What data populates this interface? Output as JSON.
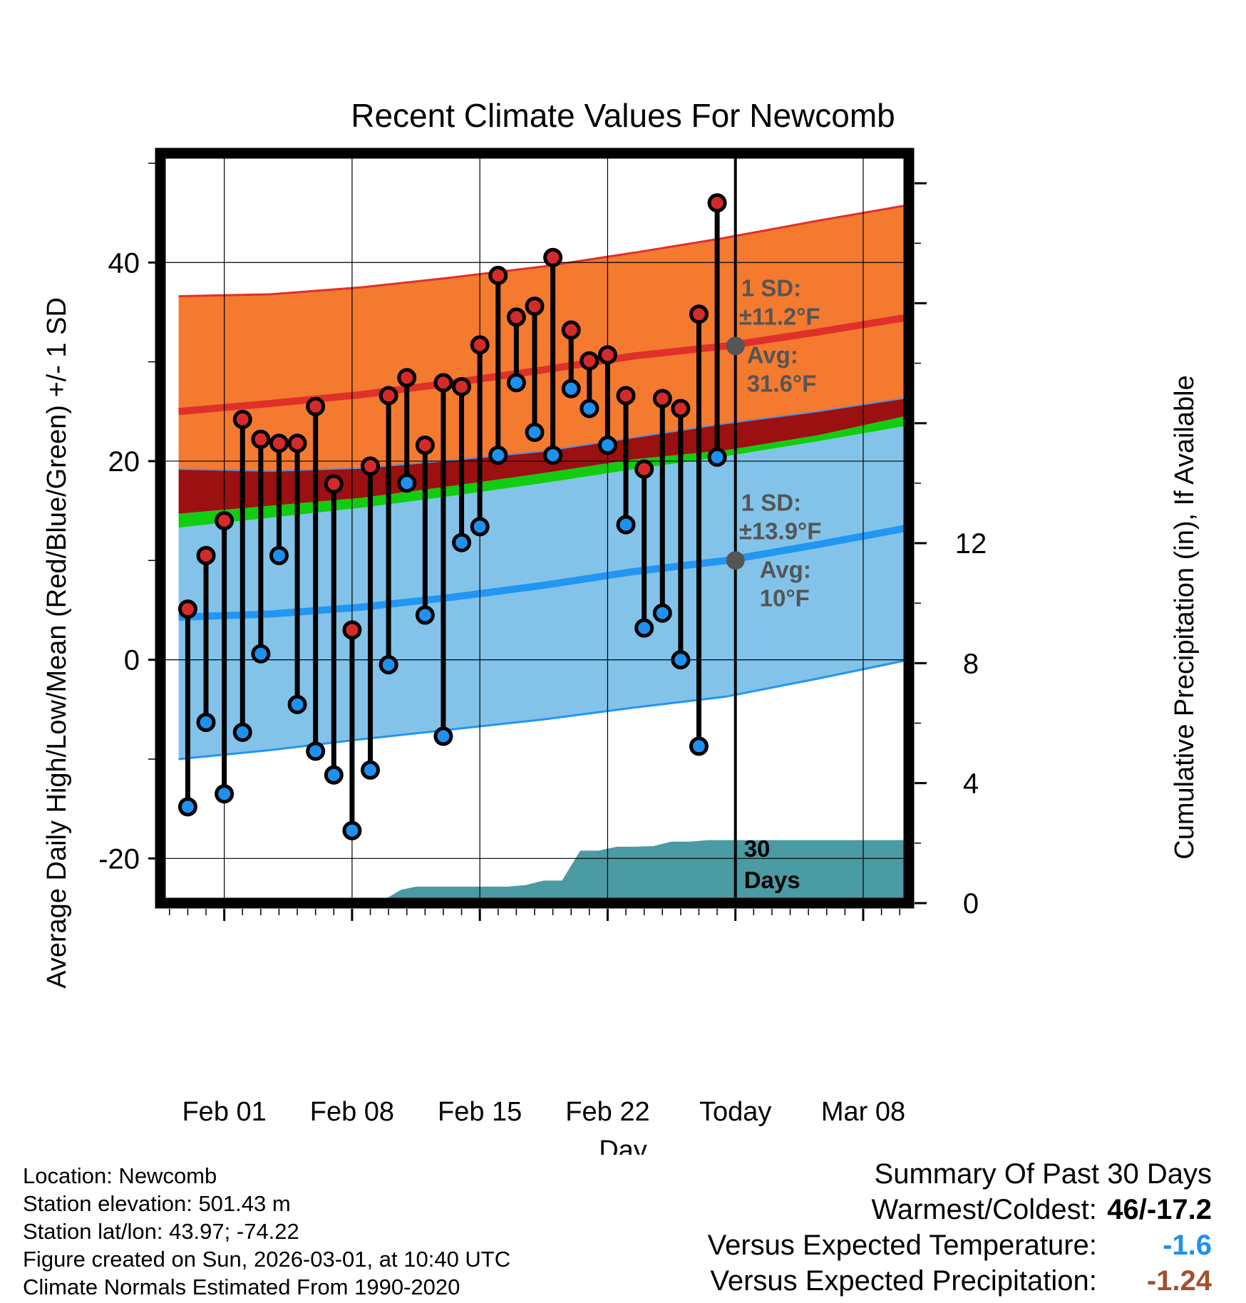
{
  "title": "Recent Climate Values For Newcomb",
  "colors": {
    "high_band": "#f47a2f",
    "high_band_edge": "#e0302a",
    "low_band": "#83c3e9",
    "low_band_edge": "#2196f3",
    "mean_band": "#9b1010",
    "mean_green": "#11cc11",
    "precip": "#4a9ba3",
    "high_marker": "#d42a2a",
    "low_marker": "#1e90ef",
    "annotation": "#555555",
    "temp_anomaly": "#1e90ef",
    "precip_anomaly": "#a0522d"
  },
  "chart_data": {
    "type": "line",
    "x_unit": "day offset (0 = Feb 01)",
    "xlim": [
      -3.5,
      37.5
    ],
    "ylim": [
      -24.5,
      51
    ],
    "y2lim": [
      0,
      25
    ],
    "xlabel": "Day",
    "ylabel": "Average Daily High/Low/Mean (Red/Blue/Green) +/- 1 SD",
    "y2label": "Cumulative Precipitation (in), If Available",
    "x_ticks": [
      {
        "x": 0,
        "label": "Feb 01"
      },
      {
        "x": 7,
        "label": "Feb 08"
      },
      {
        "x": 14,
        "label": "Feb 15"
      },
      {
        "x": 21,
        "label": "Feb 22"
      },
      {
        "x": 28,
        "label": "Today"
      },
      {
        "x": 35,
        "label": "Mar 08"
      }
    ],
    "y_ticks": [
      -20,
      0,
      20,
      40
    ],
    "y2_ticks": [
      0,
      4,
      8,
      12
    ],
    "normals_x": [
      -2.5,
      2.5,
      7.5,
      12.5,
      17.5,
      22.5,
      27.5,
      32.5,
      37.5
    ],
    "normal_high": [
      25.0,
      25.8,
      26.7,
      27.9,
      29.2,
      30.6,
      31.6,
      33.0,
      34.5
    ],
    "normal_high_upper": [
      36.6,
      36.8,
      37.5,
      38.5,
      39.6,
      41.0,
      42.5,
      44.2,
      45.8
    ],
    "normal_high_lower": [
      19.2,
      19.0,
      19.3,
      20.1,
      21.0,
      22.4,
      23.8,
      25.0,
      26.4
    ],
    "normal_mean_lower": [
      14.7,
      15.5,
      16.3,
      17.5,
      18.8,
      20.2,
      21.1,
      22.6,
      24.6
    ],
    "normal_low": [
      4.3,
      4.6,
      5.3,
      6.3,
      7.5,
      8.9,
      10.0,
      11.6,
      13.3
    ],
    "normal_low_upper": [
      13.3,
      14.3,
      15.3,
      16.5,
      17.8,
      19.2,
      20.5,
      22.0,
      23.6
    ],
    "normal_low_lower": [
      -10.0,
      -9.1,
      -8.0,
      -7.0,
      -6.0,
      -4.8,
      -3.7,
      -1.9,
      0.0
    ],
    "obs_x": [
      -2,
      -1,
      0,
      1,
      2,
      3,
      4,
      5,
      6,
      7,
      8,
      9,
      10,
      11,
      12,
      13,
      14,
      15,
      16,
      17,
      18,
      19,
      20,
      21,
      22,
      23,
      24,
      25,
      26,
      27
    ],
    "obs_high": [
      5.1,
      10.5,
      14.0,
      24.2,
      22.2,
      21.8,
      21.8,
      25.5,
      17.7,
      3.0,
      19.5,
      26.6,
      28.4,
      21.6,
      27.9,
      27.5,
      31.7,
      38.7,
      34.5,
      35.6,
      40.5,
      33.2,
      30.1,
      30.7,
      26.6,
      19.2,
      26.3,
      25.3,
      34.8,
      46.0
    ],
    "obs_low": [
      -14.8,
      -6.3,
      -13.5,
      -7.3,
      0.6,
      10.5,
      -4.5,
      -9.2,
      -11.6,
      -17.2,
      -11.1,
      -0.5,
      17.8,
      4.5,
      -7.7,
      11.8,
      13.4,
      20.6,
      27.9,
      22.9,
      20.6,
      27.3,
      25.3,
      21.6,
      13.6,
      3.2,
      4.7,
      0.0,
      -8.7,
      20.4
    ],
    "precip_x": [
      7.0,
      8.0,
      9.0,
      9.7,
      10.5,
      11.5,
      12.5,
      13.5,
      14.5,
      15.5,
      16.5,
      17.5,
      18.5,
      19.5,
      20.5,
      21.5,
      22.5,
      23.5,
      24.5,
      25.5,
      26.5,
      27.5,
      28.5,
      29.5,
      30.5,
      31.5,
      32.5,
      33.5,
      34.5,
      35.5,
      36.5,
      37.5
    ],
    "precip_in": [
      0.0,
      0.0,
      0.2,
      0.45,
      0.55,
      0.55,
      0.55,
      0.55,
      0.55,
      0.55,
      0.6,
      0.75,
      0.75,
      1.75,
      1.75,
      1.88,
      1.88,
      1.9,
      2.05,
      2.05,
      2.1,
      2.1,
      2.1,
      2.1,
      2.1,
      2.1,
      2.1,
      2.1,
      2.1,
      2.1,
      2.1,
      2.1
    ],
    "today_x": 28,
    "annotations": {
      "high": {
        "sd_label": "1 SD:",
        "sd_value": "±11.2°F",
        "avg_label": "Avg:",
        "avg_value": "31.6°F",
        "avg": 31.6
      },
      "low": {
        "sd_label": "1 SD:",
        "sd_value": "±13.9°F",
        "avg_label": "Avg:",
        "avg_value": "10°F",
        "avg": 10
      },
      "precip": {
        "line1": "30",
        "line2": "Days"
      }
    }
  },
  "footer": {
    "location": "Location: Newcomb",
    "elevation": "Station elevation: 501.43 m",
    "latlon": "Station lat/lon: 43.97; -74.22",
    "created": "Figure created on Sun, 2026-03-01, at 10:40 UTC",
    "normals": "Climate Normals Estimated From 1990-2020"
  },
  "summary": {
    "heading": "Summary Of Past 30 Days",
    "warm_cold_label": "Warmest/Coldest:",
    "warm_cold_value": "46/-17.2",
    "temp_label": "Versus Expected Temperature:",
    "temp_value": "-1.6",
    "precip_label": "Versus Expected Precipitation:",
    "precip_value": "-1.24"
  }
}
